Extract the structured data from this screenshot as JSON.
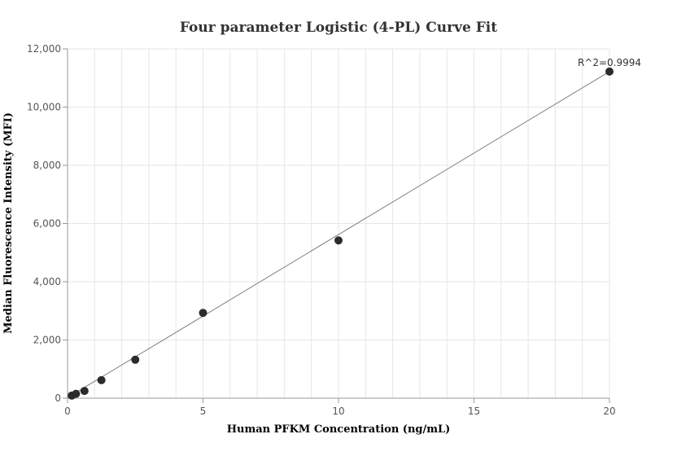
{
  "chart_data": {
    "type": "scatter",
    "title": "Four parameter Logistic (4-PL) Curve Fit",
    "xlabel": "Human PFKM Concentration (ng/mL)",
    "ylabel": "Median Fluorescence Intensity (MFI)",
    "xlim": [
      0,
      20
    ],
    "ylim": [
      0,
      12000
    ],
    "x_ticks": [
      0,
      5,
      10,
      15,
      20
    ],
    "x_tick_labels": [
      "0",
      "5",
      "10",
      "15",
      "20"
    ],
    "y_ticks": [
      0,
      2000,
      4000,
      6000,
      8000,
      10000,
      12000
    ],
    "y_tick_labels": [
      "0",
      "2,000",
      "4,000",
      "6,000",
      "8,000",
      "10,000",
      "12,000"
    ],
    "grid": true,
    "points": [
      {
        "x": 0.156,
        "y": 90
      },
      {
        "x": 0.313,
        "y": 150
      },
      {
        "x": 0.625,
        "y": 250
      },
      {
        "x": 1.25,
        "y": 620
      },
      {
        "x": 2.5,
        "y": 1320
      },
      {
        "x": 5,
        "y": 2930
      },
      {
        "x": 10,
        "y": 5420
      },
      {
        "x": 20,
        "y": 11220
      }
    ],
    "fit_line": [
      {
        "x": 0,
        "y": 20
      },
      {
        "x": 20,
        "y": 11220
      }
    ],
    "annotation": "R^2=0.9994",
    "colors": {
      "points": "#2b2b2b",
      "fit_line": "#808080",
      "grid": "#e6e6e6",
      "axis": "#999999"
    }
  }
}
